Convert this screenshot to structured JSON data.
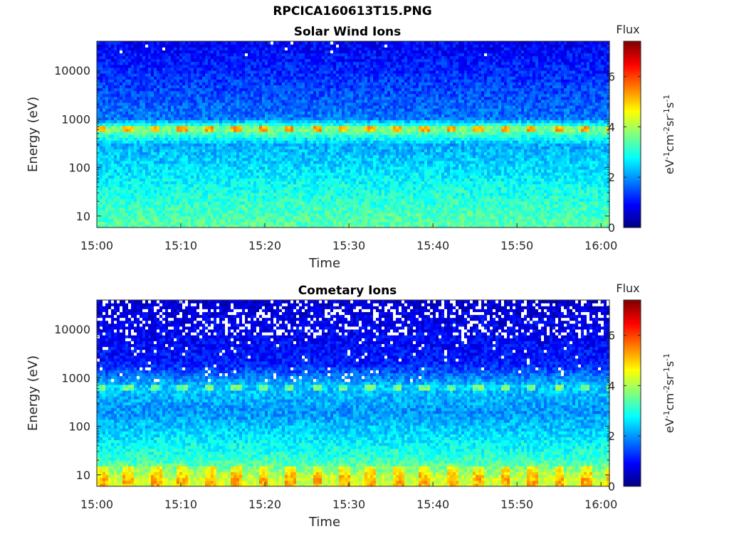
{
  "figure": {
    "title": "RPCICA160613T15.PNG"
  },
  "chart_data": [
    {
      "type": "heatmap",
      "title": "Solar Wind Ions",
      "xlabel": "Time",
      "ylabel": "Energy (eV)",
      "y_scale": "log",
      "x_ticks": [
        "15:00",
        "15:10",
        "15:20",
        "15:30",
        "15:40",
        "15:50",
        "16:00"
      ],
      "xlim": [
        "15:00",
        "16:01"
      ],
      "y_ticks": [
        10,
        100,
        1000,
        10000
      ],
      "y_tick_labels": [
        "10",
        "100",
        "1000",
        "10000"
      ],
      "ylim": [
        5.8,
        40000
      ],
      "colorbar": {
        "title": "Flux",
        "label": "eV-1cm-2sr-1s-1",
        "range": [
          0,
          7.4
        ],
        "ticks": [
          "0",
          "2",
          "4",
          "6"
        ],
        "colormap": "jet"
      },
      "profile": [
        {
          "energy_eV": 7,
          "flux": 3.4
        },
        {
          "energy_eV": 15,
          "flux": 3.2
        },
        {
          "energy_eV": 40,
          "flux": 2.9
        },
        {
          "energy_eV": 100,
          "flux": 2.5
        },
        {
          "energy_eV": 300,
          "flux": 2.2
        },
        {
          "energy_eV": 650,
          "flux": 3.8
        },
        {
          "energy_eV": 1000,
          "flux": 1.8
        },
        {
          "energy_eV": 10000,
          "flux": 1.2
        },
        {
          "energy_eV": 35000,
          "flux": 0.9
        }
      ]
    },
    {
      "type": "heatmap",
      "title": "Cometary Ions",
      "xlabel": "Time",
      "ylabel": "Energy (eV)",
      "y_scale": "log",
      "x_ticks": [
        "15:00",
        "15:10",
        "15:20",
        "15:30",
        "15:40",
        "15:50",
        "16:00"
      ],
      "xlim": [
        "15:00",
        "16:01"
      ],
      "y_ticks": [
        10,
        100,
        1000,
        10000
      ],
      "y_tick_labels": [
        "10",
        "100",
        "1000",
        "10000"
      ],
      "ylim": [
        5.8,
        40000
      ],
      "colorbar": {
        "title": "Flux",
        "label": "eV-1cm-2sr-1s-1",
        "range": [
          0,
          7.4
        ],
        "ticks": [
          "0",
          "2",
          "4",
          "6"
        ],
        "colormap": "jet"
      },
      "profile": [
        {
          "energy_eV": 8,
          "flux": 4.3
        },
        {
          "energy_eV": 20,
          "flux": 3.2
        },
        {
          "energy_eV": 60,
          "flux": 2.6
        },
        {
          "energy_eV": 200,
          "flux": 2.0
        },
        {
          "energy_eV": 650,
          "flux": 2.4
        },
        {
          "energy_eV": 2000,
          "flux": 1.1
        },
        {
          "energy_eV": 12000,
          "flux": 0.8
        },
        {
          "energy_eV": 35000,
          "flux": 0.6
        }
      ]
    }
  ]
}
